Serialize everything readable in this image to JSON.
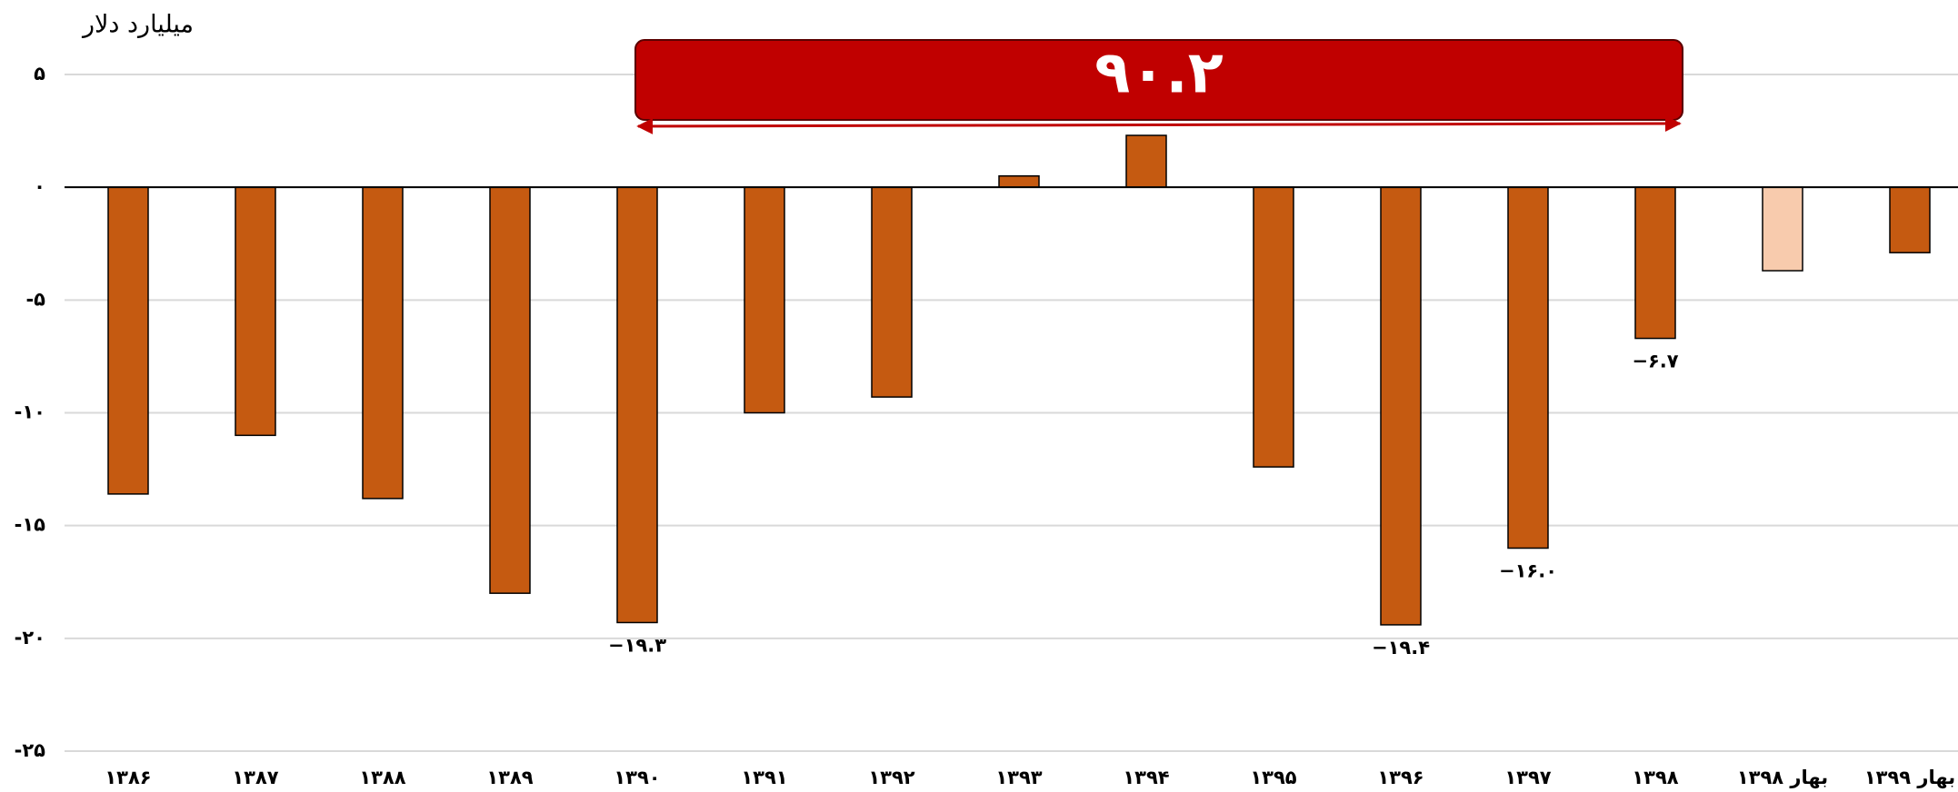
{
  "chart_data": {
    "type": "bar",
    "y_axis_label": "میلیارد دلار",
    "annotation": "۹۰.۲",
    "categories": [
      "۱۳۸۶",
      "۱۳۸۷",
      "۱۳۸۸",
      "۱۳۸۹",
      "۱۳۹۰",
      "۱۳۹۱",
      "۱۳۹۲",
      "۱۳۹۳",
      "۱۳۹۴",
      "۱۳۹۵",
      "۱۳۹۶",
      "۱۳۹۷",
      "۱۳۹۸",
      "بهار ۱۳۹۸",
      "بهار ۱۳۹۹"
    ],
    "values": [
      -13.6,
      -11.0,
      -13.8,
      -18.0,
      -19.3,
      -10.0,
      -9.3,
      0.5,
      2.3,
      -12.4,
      -19.4,
      -16.0,
      -6.7,
      -3.7,
      -2.9
    ],
    "value_labels": [
      null,
      null,
      null,
      null,
      "−۱۹.۳",
      null,
      null,
      null,
      null,
      null,
      "−۱۹.۴",
      "−۱۶.۰",
      "−۶.۷",
      null,
      null
    ],
    "colors": [
      "#c55a11",
      "#c55a11",
      "#c55a11",
      "#c55a11",
      "#c55a11",
      "#c55a11",
      "#c55a11",
      "#c55a11",
      "#c55a11",
      "#c55a11",
      "#c55a11",
      "#c55a11",
      "#c55a11",
      "#f8cbad",
      "#c55a11"
    ],
    "ylim": [
      -25,
      5
    ],
    "yticks": [
      {
        "value": 5,
        "label": "۵"
      },
      {
        "value": 0,
        "label": "۰"
      },
      {
        "value": -5,
        "label": "-۵"
      },
      {
        "value": -10,
        "label": "-۱۰"
      },
      {
        "value": -15,
        "label": "-۱۵"
      },
      {
        "value": -20,
        "label": "-۲۰"
      },
      {
        "value": -25,
        "label": "-۲۵"
      }
    ],
    "grid": true
  }
}
